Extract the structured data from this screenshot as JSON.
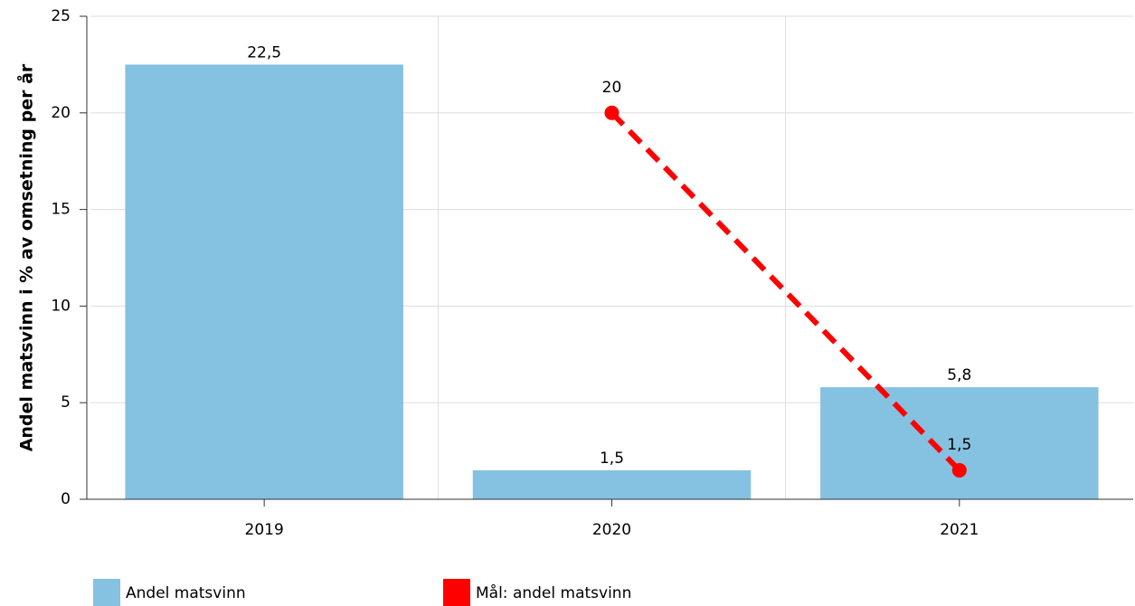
{
  "chart_data": {
    "type": "bar",
    "y_label": "Andel matsvinn i % av omsetning per år",
    "categories": [
      "2019",
      "2020",
      "2021"
    ],
    "series": [
      {
        "name": "Andel matsvinn",
        "type": "bar",
        "color": "#85c1e1",
        "values": [
          22.5,
          1.5,
          5.8
        ],
        "value_labels": [
          "22,5",
          "1,5",
          "5,8"
        ]
      },
      {
        "name": "Mål: andel matsvinn",
        "type": "line",
        "color": "#ff0000",
        "dashed": true,
        "values": [
          null,
          20,
          1.5
        ],
        "value_labels": [
          null,
          "20",
          "1,5"
        ]
      }
    ],
    "ylim": [
      0,
      25
    ],
    "yticks": [
      0,
      5,
      10,
      15,
      20,
      25
    ],
    "grid": true,
    "legend": "bottom"
  }
}
